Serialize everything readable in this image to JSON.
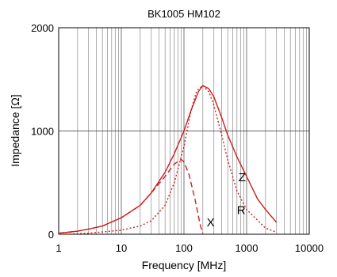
{
  "chart_data": {
    "type": "line",
    "title": "BK1005  HM102",
    "xlabel": "Frequency  [MHz]",
    "ylabel": "Impedance  [Ω]",
    "xscale": "log",
    "xlim": [
      1,
      10000
    ],
    "ylim": [
      0,
      2000
    ],
    "x_tick_labels": [
      "1",
      "10",
      "100",
      "1000",
      "10000"
    ],
    "y_tick_labels": [
      "0",
      "1000",
      "2000"
    ],
    "grid": true,
    "line_color": "#cc1f1f",
    "series": [
      {
        "name": "Z",
        "style": "solid",
        "x": [
          1,
          2,
          3,
          5,
          10,
          20,
          30,
          50,
          70,
          100,
          130,
          170,
          200,
          250,
          300,
          400,
          500,
          700,
          1000,
          1500,
          2000,
          3000
        ],
        "y": [
          10,
          30,
          50,
          80,
          160,
          280,
          400,
          600,
          780,
          1000,
          1200,
          1380,
          1440,
          1410,
          1330,
          1130,
          960,
          750,
          560,
          340,
          240,
          115
        ]
      },
      {
        "name": "R",
        "style": "dotted",
        "x": [
          1,
          3,
          10,
          20,
          30,
          50,
          70,
          100,
          130,
          160,
          200,
          250,
          300,
          400,
          500,
          700,
          1000,
          2000,
          3000
        ],
        "y": [
          0,
          10,
          40,
          80,
          130,
          280,
          500,
          850,
          1200,
          1390,
          1440,
          1380,
          1250,
          960,
          720,
          420,
          240,
          60,
          20
        ]
      },
      {
        "name": "X",
        "style": "dashed",
        "x": [
          1,
          2,
          3,
          5,
          10,
          20,
          30,
          50,
          70,
          90,
          100,
          120,
          150,
          180,
          200
        ],
        "y": [
          10,
          30,
          50,
          80,
          160,
          280,
          400,
          560,
          680,
          725,
          700,
          580,
          340,
          100,
          0
        ]
      }
    ]
  }
}
